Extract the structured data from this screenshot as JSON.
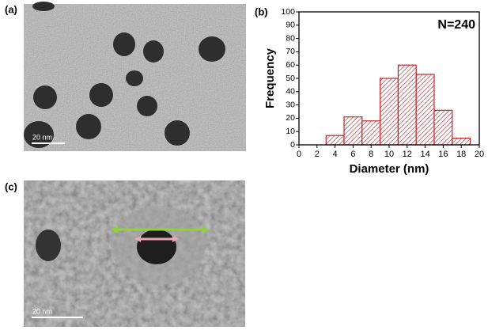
{
  "panels": {
    "a": {
      "label": "(a)",
      "scale_bar": "20 nm"
    },
    "c": {
      "label": "(c)",
      "scale_bar": "20 nm"
    }
  },
  "chart_data": {
    "type": "histogram",
    "panel_label": "(b)",
    "annotation": "N=240",
    "x_label": "Diameter (nm)",
    "y_label": "Frequency",
    "bins": [
      3,
      5,
      7,
      9,
      11,
      13,
      15,
      17,
      19
    ],
    "values": [
      7,
      21,
      18,
      50,
      60,
      53,
      26,
      5
    ],
    "color": "#c0262d",
    "xlim": [
      0,
      20
    ],
    "xticks": [
      0,
      2,
      4,
      6,
      8,
      10,
      12,
      14,
      16,
      18,
      20
    ],
    "ylim": [
      0,
      100
    ],
    "yticks": [
      0,
      10,
      20,
      30,
      40,
      50,
      60,
      70,
      80,
      90,
      100
    ]
  }
}
